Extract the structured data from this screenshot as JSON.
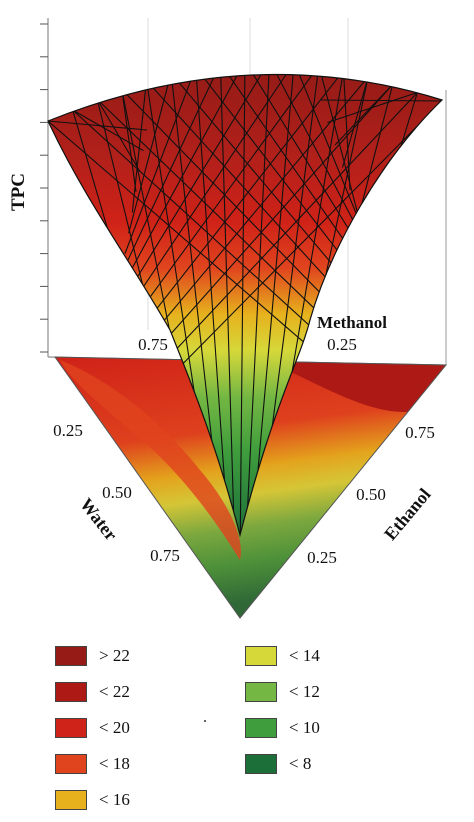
{
  "chart_data": {
    "type": "surface",
    "z_label": "TPC",
    "components": [
      "Water",
      "Ethanol",
      "Methanol"
    ],
    "water_ticks": [
      "0.25",
      "0.50",
      "0.75"
    ],
    "ethanol_ticks": [
      "0.25",
      "0.50",
      "0.75"
    ],
    "methanol_ticks": [
      "0.75",
      "0.25"
    ],
    "legend": [
      {
        "label": "> 22",
        "color": "#961b17"
      },
      {
        "label": "< 22",
        "color": "#ad1a15"
      },
      {
        "label": "< 20",
        "color": "#cf2218"
      },
      {
        "label": "< 18",
        "color": "#e0441e"
      },
      {
        "label": "< 16",
        "color": "#e6b11d"
      },
      {
        "label": "< 14",
        "color": "#d6d83a"
      },
      {
        "label": "< 12",
        "color": "#74b743"
      },
      {
        "label": "< 10",
        "color": "#3f9d3d"
      },
      {
        "label": "< 8",
        "color": "#1d6f3a"
      }
    ]
  }
}
